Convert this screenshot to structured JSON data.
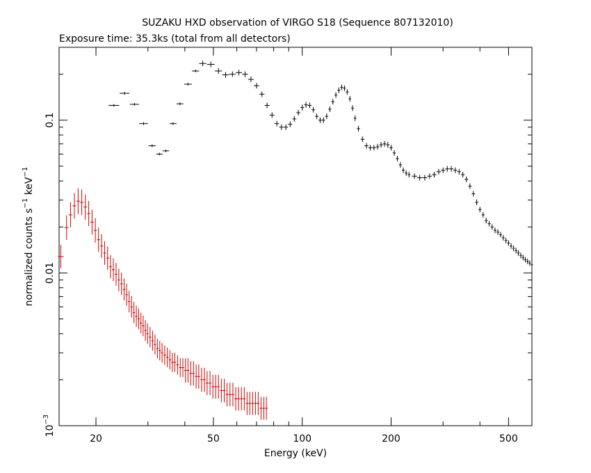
{
  "title": "SUZAKU HXD observation of VIRGO S18 (Sequence 807132010)",
  "subtitle": "Exposure time: 35.3ks (total from all detectors)",
  "chart_data": {
    "type": "scatter",
    "title": "SUZAKU HXD observation of VIRGO S18 (Sequence 807132010)",
    "subtitle": "Exposure time: 35.3ks (total from all detectors)",
    "xlabel": "Energy (keV)",
    "ylabel_main": "normalized counts s",
    "ylabel_exp1": "−1",
    "ylabel_mid": " keV",
    "ylabel_exp2": "−1",
    "xscale": "log",
    "yscale": "log",
    "xlim": [
      15,
      600
    ],
    "ylim": [
      0.001,
      0.3
    ],
    "x_ticks": [
      {
        "value": 20,
        "label": "20"
      },
      {
        "value": 50,
        "label": "50"
      },
      {
        "value": 100,
        "label": "100"
      },
      {
        "value": 200,
        "label": "200"
      },
      {
        "value": 500,
        "label": "500"
      }
    ],
    "y_ticks": [
      {
        "value": 0.1,
        "label": "0.1"
      },
      {
        "value": 0.01,
        "label": "0.01"
      },
      {
        "value": 0.001,
        "label": "10",
        "exp": "−3"
      }
    ],
    "colors": {
      "gso": "#000000",
      "pin": "#cc0000"
    },
    "series": [
      {
        "key": "gso",
        "color": "#000000",
        "points": [
          [
            23.0,
            0.125
          ],
          [
            25.0,
            0.15
          ],
          [
            27.0,
            0.127
          ],
          [
            29.0,
            0.095
          ],
          [
            31.0,
            0.068
          ],
          [
            32.8,
            0.06
          ],
          [
            34.5,
            0.063
          ],
          [
            36.5,
            0.095
          ],
          [
            38.5,
            0.128
          ],
          [
            41.0,
            0.172
          ],
          [
            43.5,
            0.21
          ],
          [
            46.0,
            0.235
          ],
          [
            49.0,
            0.232
          ],
          [
            52.0,
            0.21
          ],
          [
            55.0,
            0.198
          ],
          [
            58.0,
            0.2
          ],
          [
            61.0,
            0.205
          ],
          [
            64.0,
            0.2
          ],
          [
            67.0,
            0.185
          ],
          [
            70.0,
            0.168
          ],
          [
            73.0,
            0.148
          ],
          [
            76.0,
            0.125
          ],
          [
            79.0,
            0.108
          ],
          [
            82.0,
            0.095
          ],
          [
            85.0,
            0.09
          ],
          [
            88.0,
            0.09
          ],
          [
            91.0,
            0.094
          ],
          [
            94.0,
            0.102
          ],
          [
            97.0,
            0.112
          ],
          [
            100.0,
            0.121
          ],
          [
            103.0,
            0.126
          ],
          [
            106.0,
            0.125
          ],
          [
            109.0,
            0.117
          ],
          [
            112.0,
            0.106
          ],
          [
            115.0,
            0.1
          ],
          [
            118.0,
            0.1
          ],
          [
            121.0,
            0.106
          ],
          [
            124.0,
            0.118
          ],
          [
            127.0,
            0.132
          ],
          [
            130.0,
            0.146
          ],
          [
            133.0,
            0.157
          ],
          [
            136.0,
            0.164
          ],
          [
            139.0,
            0.162
          ],
          [
            142.0,
            0.153
          ],
          [
            145.0,
            0.138
          ],
          [
            148.0,
            0.12
          ],
          [
            151.0,
            0.103
          ],
          [
            155.0,
            0.088
          ],
          [
            160.0,
            0.075
          ],
          [
            165.0,
            0.068
          ],
          [
            170.0,
            0.066
          ],
          [
            175.0,
            0.066
          ],
          [
            180.0,
            0.067
          ],
          [
            185.0,
            0.069
          ],
          [
            190.0,
            0.07
          ],
          [
            195.0,
            0.069
          ],
          [
            200.0,
            0.066
          ],
          [
            205.0,
            0.061
          ],
          [
            210.0,
            0.056
          ],
          [
            215.0,
            0.051
          ],
          [
            220.0,
            0.047
          ],
          [
            225.0,
            0.045
          ],
          [
            230.0,
            0.044
          ],
          [
            240.0,
            0.043
          ],
          [
            250.0,
            0.042
          ],
          [
            260.0,
            0.042
          ],
          [
            270.0,
            0.043
          ],
          [
            280.0,
            0.044
          ],
          [
            290.0,
            0.046
          ],
          [
            300.0,
            0.047
          ],
          [
            310.0,
            0.048
          ],
          [
            320.0,
            0.048
          ],
          [
            330.0,
            0.047
          ],
          [
            340.0,
            0.046
          ],
          [
            350.0,
            0.044
          ],
          [
            360.0,
            0.041
          ],
          [
            370.0,
            0.037
          ],
          [
            380.0,
            0.033
          ],
          [
            390.0,
            0.029
          ],
          [
            400.0,
            0.026
          ],
          [
            410.0,
            0.024
          ],
          [
            420.0,
            0.022
          ],
          [
            430.0,
            0.021
          ],
          [
            440.0,
            0.02
          ],
          [
            450.0,
            0.019
          ],
          [
            460.0,
            0.0185
          ],
          [
            470.0,
            0.0178
          ],
          [
            480.0,
            0.017
          ],
          [
            490.0,
            0.0163
          ],
          [
            500.0,
            0.0157
          ],
          [
            510.0,
            0.015
          ],
          [
            520.0,
            0.0145
          ],
          [
            530.0,
            0.014
          ],
          [
            540.0,
            0.0135
          ],
          [
            550.0,
            0.013
          ],
          [
            560.0,
            0.0126
          ],
          [
            570.0,
            0.0122
          ],
          [
            580.0,
            0.0119
          ],
          [
            590.0,
            0.0116
          ],
          [
            600.0,
            0.0113
          ]
        ]
      },
      {
        "key": "pin",
        "color": "#cc0000",
        "points": [
          [
            15.2,
            0.0128
          ],
          [
            15.9,
            0.0198
          ],
          [
            16.4,
            0.024
          ],
          [
            16.9,
            0.0275
          ],
          [
            17.4,
            0.0295
          ],
          [
            17.9,
            0.029
          ],
          [
            18.4,
            0.027
          ],
          [
            18.9,
            0.0245
          ],
          [
            19.4,
            0.0215
          ],
          [
            19.9,
            0.019
          ],
          [
            20.4,
            0.0165
          ],
          [
            20.9,
            0.015
          ],
          [
            21.4,
            0.0135
          ],
          [
            21.9,
            0.0125
          ],
          [
            22.4,
            0.011
          ],
          [
            22.9,
            0.0105
          ],
          [
            23.4,
            0.0098
          ],
          [
            23.9,
            0.009
          ],
          [
            24.4,
            0.0085
          ],
          [
            24.9,
            0.0078
          ],
          [
            25.4,
            0.0072
          ],
          [
            25.9,
            0.0065
          ],
          [
            26.4,
            0.006
          ],
          [
            26.9,
            0.0055
          ],
          [
            27.4,
            0.0052
          ],
          [
            27.9,
            0.005
          ],
          [
            28.4,
            0.0047
          ],
          [
            28.9,
            0.0045
          ],
          [
            29.4,
            0.0042
          ],
          [
            29.9,
            0.004
          ],
          [
            30.5,
            0.0038
          ],
          [
            31.1,
            0.0036
          ],
          [
            31.7,
            0.0034
          ],
          [
            32.3,
            0.0032
          ],
          [
            32.9,
            0.0031
          ],
          [
            33.5,
            0.003
          ],
          [
            34.2,
            0.0029
          ],
          [
            34.9,
            0.0028
          ],
          [
            35.6,
            0.0027
          ],
          [
            36.3,
            0.0026
          ],
          [
            37.0,
            0.0026
          ],
          [
            37.8,
            0.0025
          ],
          [
            38.6,
            0.0024
          ],
          [
            39.4,
            0.0024
          ],
          [
            40.2,
            0.0023
          ],
          [
            41.0,
            0.0023
          ],
          [
            41.9,
            0.0022
          ],
          [
            42.8,
            0.0022
          ],
          [
            43.7,
            0.0021
          ],
          [
            44.6,
            0.0021
          ],
          [
            45.6,
            0.002
          ],
          [
            46.6,
            0.002
          ],
          [
            47.6,
            0.0019
          ],
          [
            48.7,
            0.0019
          ],
          [
            49.8,
            0.0018
          ],
          [
            50.9,
            0.0018
          ],
          [
            52.0,
            0.0018
          ],
          [
            53.2,
            0.0017
          ],
          [
            54.4,
            0.0017
          ],
          [
            55.6,
            0.0016
          ],
          [
            56.9,
            0.0016
          ],
          [
            58.2,
            0.0016
          ],
          [
            59.5,
            0.0015
          ],
          [
            60.8,
            0.0015
          ],
          [
            62.2,
            0.0015
          ],
          [
            63.6,
            0.0015
          ],
          [
            65.0,
            0.0014
          ],
          [
            66.4,
            0.0014
          ],
          [
            67.9,
            0.0014
          ],
          [
            69.4,
            0.0014
          ],
          [
            70.9,
            0.0014
          ],
          [
            72.5,
            0.0013
          ],
          [
            74.1,
            0.0013
          ],
          [
            75.6,
            0.0013
          ]
        ]
      }
    ]
  }
}
